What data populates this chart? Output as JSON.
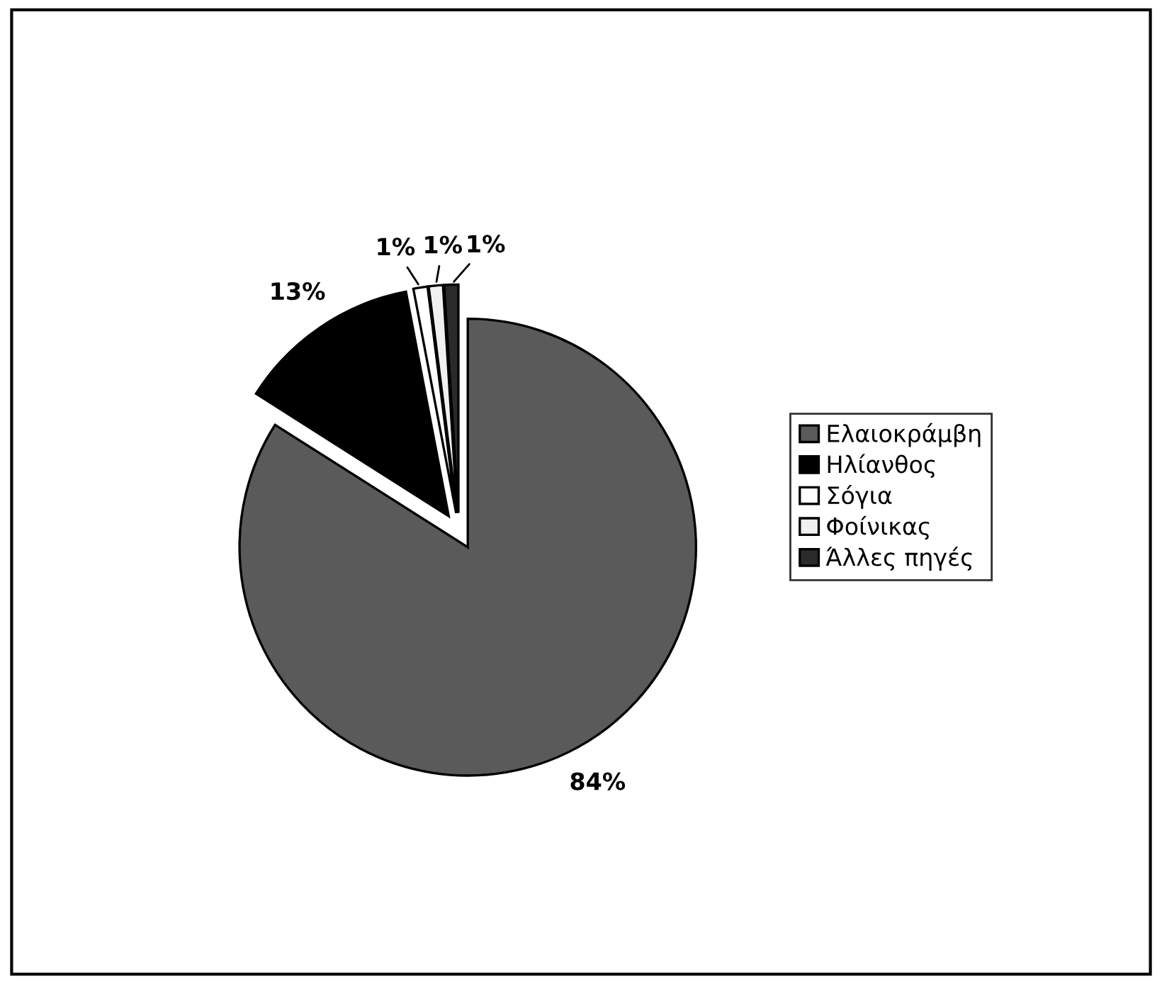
{
  "chart_data": {
    "type": "pie",
    "categories": [
      "Ελαιοκράμβη",
      "Ηλίανθος",
      "Σόγια",
      "Φοίνικας",
      "Άλλες πηγές"
    ],
    "values": [
      84,
      13,
      1,
      1,
      1
    ],
    "colors": [
      "#5a5a5a",
      "#000000",
      "#ffffff",
      "#f0f0f0",
      "#2a2a2a"
    ],
    "value_labels": [
      "84%",
      "13%",
      "1%",
      "1%",
      "1%"
    ],
    "legend": "right"
  }
}
